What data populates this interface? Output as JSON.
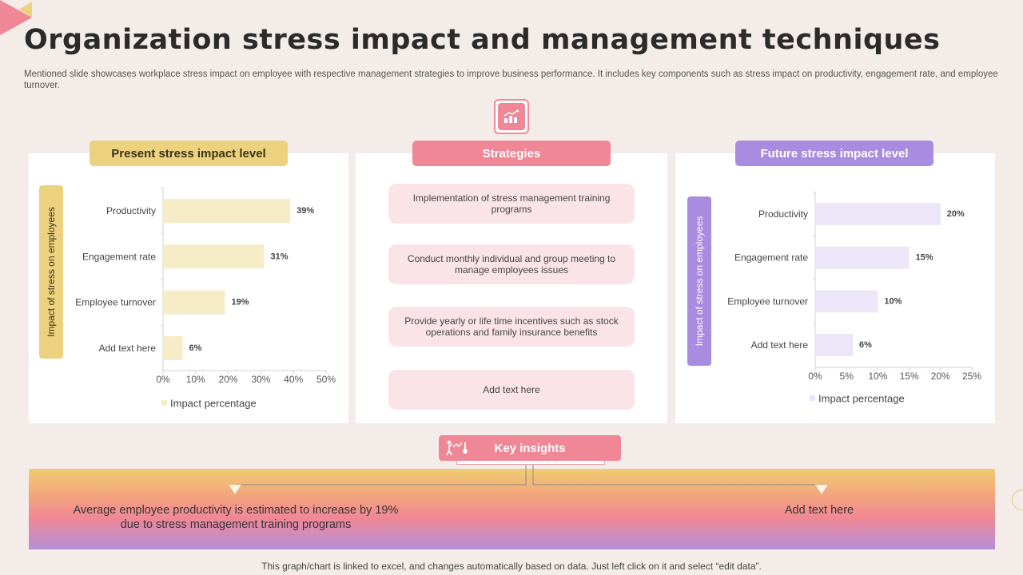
{
  "header": {
    "title": "Organization stress impact and management techniques",
    "subtitle": "Mentioned slide showcases workplace stress impact on employee with respective management strategies to improve business performance. It includes key components such as stress impact on productivity, engagement rate, and employee turnover."
  },
  "colors": {
    "background": "#f3ece9",
    "yellow": "#ecd27f",
    "pink": "#ef8797",
    "purple": "#a98be0",
    "left_bar": "#f6ecc8",
    "right_bar": "#ece6f8"
  },
  "icons": {
    "center": "chart-growth-icon",
    "insights": "person-chart-icon"
  },
  "panels": {
    "left_title": "Present stress impact level",
    "mid_title": "Strategies",
    "right_title": "Future stress impact level"
  },
  "strategies": [
    "Implementation of stress management training programs",
    "Conduct monthly individual and group meeting to manage employees issues",
    "Provide yearly or life time incentives such as stock operations and family insurance benefits",
    "Add text here"
  ],
  "chart_data": [
    {
      "type": "bar",
      "orientation": "horizontal",
      "title": "Present stress impact level",
      "categories": [
        "Productivity",
        "Engagement rate",
        "Employee turnover",
        "Add text here"
      ],
      "values": [
        39,
        31,
        19,
        6
      ],
      "value_labels": [
        "39%",
        "31%",
        "19%",
        "6%"
      ],
      "xlim": [
        0,
        50
      ],
      "xticks": [
        0,
        10,
        20,
        30,
        40,
        50
      ],
      "xtick_labels": [
        "0%",
        "10%",
        "20%",
        "30%",
        "40%",
        "50%"
      ],
      "ylabel": "Impact of stress on employees",
      "legend": "Impact percentage",
      "legend_position": "bottom",
      "grid": false
    },
    {
      "type": "bar",
      "orientation": "horizontal",
      "title": "Future stress impact level",
      "categories": [
        "Productivity",
        "Engagement rate",
        "Employee turnover",
        "Add text here"
      ],
      "values": [
        20,
        15,
        10,
        6
      ],
      "value_labels": [
        "20%",
        "15%",
        "10%",
        "6%"
      ],
      "xlim": [
        0,
        25
      ],
      "xticks": [
        0,
        5,
        10,
        15,
        20,
        25
      ],
      "xtick_labels": [
        "0%",
        "5%",
        "10%",
        "15%",
        "20%",
        "25%"
      ],
      "ylabel": "Impact of stress on employees",
      "legend": "Impact percentage",
      "legend_position": "bottom",
      "grid": false
    }
  ],
  "insights": {
    "title": "Key insights",
    "left_text": "Average employee productivity is estimated to increase by 19% due to stress management training programs",
    "right_text": "Add text here"
  },
  "footer": "This graph/chart is linked to excel, and changes automatically based on data. Just left click on it and select “edit data”."
}
